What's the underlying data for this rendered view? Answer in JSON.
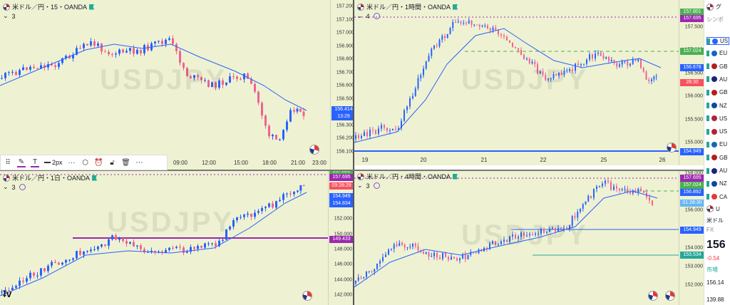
{
  "toolbar": {
    "items": [
      "grid-icon",
      "pencil-icon",
      "text-icon",
      "line-width",
      "dots-icon",
      "hexagon-icon",
      "alarm-icon",
      "lock-icon",
      "trash-icon",
      "more-icon"
    ],
    "line_width_label": "2px",
    "more_label": "···"
  },
  "panes": {
    "m15": {
      "title": "米ドル／円・15・OANDA",
      "counter": "3",
      "watermark": "USDJPY",
      "y_ticks": [
        "157.200",
        "157.100",
        "157.000",
        "156.900",
        "156.800",
        "156.700",
        "156.600",
        "156.500",
        "156.400",
        "156.300",
        "156.200",
        "156.100"
      ],
      "x_ticks": [
        "09:00",
        "12:00",
        "15:00",
        "18:00",
        "21:00",
        "23:00"
      ],
      "price_label": "156.414",
      "countdown": "13:29"
    },
    "h1": {
      "title": "米ドル／円・1時間・OANDA",
      "counter": "4",
      "watermark": "USDJPY",
      "y_ticks": [
        "157.500",
        "157.000",
        "156.500",
        "156.000",
        "155.500",
        "155.000"
      ],
      "x_ticks": [
        "19",
        "20",
        "21",
        "22",
        "25",
        "26"
      ],
      "labels": [
        {
          "v": "157.801",
          "c": "#4caf50"
        },
        {
          "v": "157.695",
          "c": "#9c27b0"
        },
        {
          "v": "157.024",
          "c": "#4caf50"
        },
        {
          "v": "156.678",
          "c": "#2962ff"
        },
        {
          "v": "28:30",
          "c": "#f7525f"
        },
        {
          "v": "154.949",
          "c": "#2962ff"
        }
      ]
    },
    "d1": {
      "title": "米ドル／円・1日・OANDA",
      "counter": "3",
      "watermark": "USDJPY",
      "y_ticks": [
        "158.000",
        "156.000",
        "154.000",
        "152.000",
        "150.000",
        "148.000",
        "146.000",
        "144.000",
        "142.000"
      ],
      "labels": [
        {
          "v": "157.801",
          "c": "#4caf50"
        },
        {
          "v": "157.695",
          "c": "#9c27b0"
        },
        {
          "v": "09:28:29",
          "c": "#f7525f"
        },
        {
          "v": "154.949",
          "c": "#2962ff"
        },
        {
          "v": "154.834",
          "c": "#2962ff"
        },
        {
          "v": "149.433",
          "c": "#9c27b0"
        }
      ]
    },
    "h4": {
      "title": "米ドル／円・4時間・OANDA",
      "counter": "3",
      "watermark": "USDJPY",
      "y_ticks": [
        "158.000",
        "157.000",
        "156.000",
        "155.000",
        "154.000",
        "153.000",
        "152.000"
      ],
      "labels": [
        {
          "v": "157.695",
          "c": "#9c27b0"
        },
        {
          "v": "157.024",
          "c": "#4caf50"
        },
        {
          "v": "156.892",
          "c": "#2962ff"
        },
        {
          "v": "01:28:30",
          "c": "#64b5f6"
        },
        {
          "v": "154.949",
          "c": "#2962ff"
        },
        {
          "v": "153.534",
          "c": "#26a69a"
        }
      ]
    }
  },
  "watchlist": {
    "header": "グ",
    "symbol_hint": "シンボ",
    "rows": [
      "US",
      "EU",
      "GB",
      "AU",
      "GB",
      "NZ",
      "US",
      "US",
      "EU",
      "GB",
      "AU",
      "NZ",
      "CA"
    ],
    "detail": {
      "symbol": "U",
      "name": "米ドル",
      "type": "FX",
      "price": "156",
      "change": "-0.54",
      "market": "市場",
      "low": "156.14",
      "bottom": "139.88"
    }
  }
}
